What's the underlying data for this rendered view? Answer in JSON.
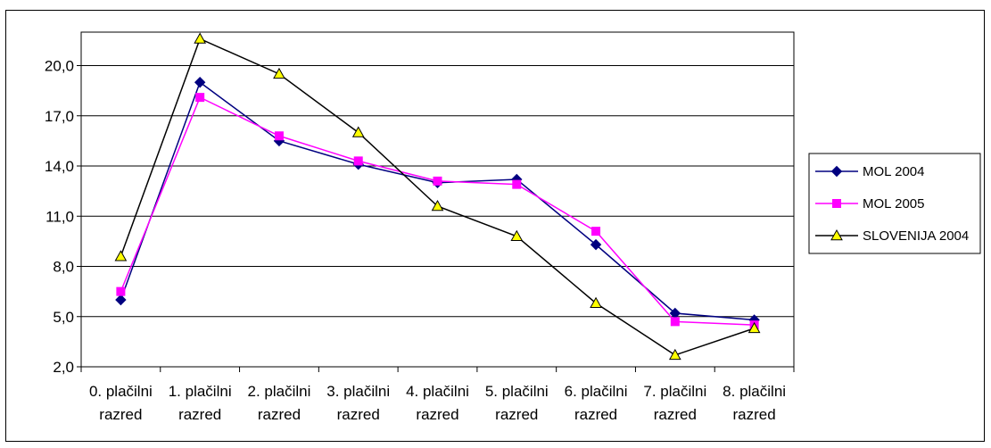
{
  "chart_data": {
    "type": "line",
    "title": "",
    "xlabel": "",
    "ylabel": "",
    "categories": [
      [
        "0. plačilni",
        "razred"
      ],
      [
        "1. plačilni",
        "razred"
      ],
      [
        "2. plačilni",
        "razred"
      ],
      [
        "3. plačilni",
        "razred"
      ],
      [
        "4. plačilni",
        "razred"
      ],
      [
        "5. plačilni",
        "razred"
      ],
      [
        "6. plačilni",
        "razred"
      ],
      [
        "7. plačilni",
        "razred"
      ],
      [
        "8. plačilni",
        "razred"
      ]
    ],
    "ylim": [
      2.0,
      22.0
    ],
    "yticks": [
      "2,0",
      "5,0",
      "8,0",
      "11,0",
      "14,0",
      "17,0",
      "20,0"
    ],
    "ytick_values": [
      2,
      5,
      8,
      11,
      14,
      17,
      20
    ],
    "grid": true,
    "legend_position": "right",
    "series": [
      {
        "name": "MOL 2004",
        "color": "#000080",
        "marker": "diamond",
        "values": [
          6.0,
          19.0,
          15.5,
          14.1,
          13.0,
          13.2,
          9.3,
          5.2,
          4.8
        ]
      },
      {
        "name": "MOL 2005",
        "color": "#ff00ff",
        "marker": "square",
        "values": [
          6.5,
          18.1,
          15.8,
          14.3,
          13.1,
          12.9,
          10.1,
          4.7,
          4.5
        ]
      },
      {
        "name": "SLOVENIJA 2004",
        "color": "#000000",
        "marker": "triangle",
        "marker_fill": "#ffff00",
        "values": [
          8.6,
          21.6,
          19.5,
          16.0,
          11.6,
          9.8,
          5.8,
          2.7,
          4.3
        ]
      }
    ]
  }
}
